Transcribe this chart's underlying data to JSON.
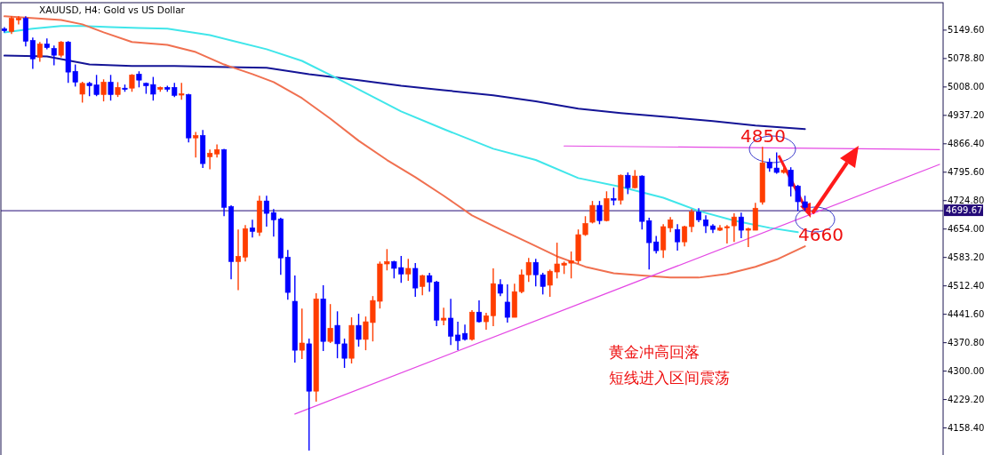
{
  "chart_data": {
    "type": "candlestick",
    "title": "XAUUSD, H4:  Gold vs US Dollar",
    "categories": [
      null,
      null,
      null,
      null,
      null,
      null,
      null,
      null,
      null,
      null,
      null,
      null,
      null,
      null,
      null,
      null,
      null,
      null,
      null,
      null,
      null,
      null,
      null,
      null,
      null,
      null,
      null,
      null,
      null,
      null,
      null,
      null,
      null,
      null,
      null,
      null,
      null,
      null,
      null,
      null,
      null,
      null,
      null,
      null,
      null,
      null,
      null,
      null,
      null,
      null,
      null,
      null,
      null,
      null,
      null,
      null,
      null,
      null,
      null,
      null,
      null,
      null,
      null,
      null,
      null,
      null,
      null,
      null,
      null,
      null,
      null,
      null,
      null,
      null,
      null,
      null,
      null,
      null,
      null,
      null,
      null,
      null,
      null,
      null,
      null,
      null,
      null,
      null,
      null,
      null,
      null,
      null,
      null,
      null,
      null,
      null,
      null,
      null,
      null,
      null,
      null,
      null,
      null,
      null,
      null,
      null,
      null,
      null,
      null,
      null,
      null,
      null,
      null,
      null,
      null,
      null,
      null,
      null,
      null,
      null,
      null,
      null,
      null,
      null,
      null,
      null,
      null,
      null,
      null,
      null,
      null,
      null,
      null
    ],
    "ohlc": [
      [
        5153,
        5157,
        5144,
        5148
      ],
      [
        5146,
        5184,
        5140,
        5179
      ],
      [
        5175,
        5184,
        5164,
        5179
      ],
      [
        5179,
        5184,
        5109,
        5122
      ],
      [
        5124,
        5131,
        5053,
        5078
      ],
      [
        5082,
        5120,
        5071,
        5115
      ],
      [
        5115,
        5129,
        5102,
        5106
      ],
      [
        5104,
        5111,
        5062,
        5087
      ],
      [
        5087,
        5122,
        5082,
        5120
      ],
      [
        5120,
        5122,
        5018,
        5045
      ],
      [
        5047,
        5064,
        5009,
        5020
      ],
      [
        4990,
        5021,
        4969,
        5017
      ],
      [
        5017,
        5021,
        4985,
        5011
      ],
      [
        5013,
        5038,
        4985,
        4989
      ],
      [
        4989,
        5027,
        4972,
        5020
      ],
      [
        5020,
        5038,
        4974,
        4989
      ],
      [
        4989,
        5020,
        4983,
        5007
      ],
      [
        5005,
        5014,
        4996,
        5003
      ],
      [
        5005,
        5040,
        4996,
        5038
      ],
      [
        5040,
        5047,
        5007,
        5025
      ],
      [
        5017,
        5019,
        4991,
        5011
      ],
      [
        5014,
        5033,
        4974,
        4990
      ],
      [
        5002,
        5009,
        4996,
        5007
      ],
      [
        5007,
        5011,
        4996,
        5002
      ],
      [
        5007,
        5018,
        4983,
        4987
      ],
      [
        4989,
        5018,
        4976,
        4991
      ],
      [
        4989,
        4991,
        4870,
        4881
      ],
      [
        4881,
        4896,
        4832,
        4887
      ],
      [
        4887,
        4901,
        4806,
        4817
      ],
      [
        4834,
        4852,
        4803,
        4843
      ],
      [
        4841,
        4865,
        4832,
        4852
      ],
      [
        4852,
        4854,
        4686,
        4708
      ],
      [
        4710,
        4713,
        4529,
        4573
      ],
      [
        4573,
        4653,
        4502,
        4586
      ],
      [
        4584,
        4664,
        4573,
        4655
      ],
      [
        4657,
        4677,
        4633,
        4648
      ],
      [
        4646,
        4737,
        4637,
        4724
      ],
      [
        4724,
        4737,
        4660,
        4693
      ],
      [
        4695,
        4704,
        4635,
        4677
      ],
      [
        4679,
        4682,
        4540,
        4582
      ],
      [
        4584,
        4602,
        4478,
        4496
      ],
      [
        4474,
        4538,
        4321,
        4352
      ],
      [
        4352,
        4456,
        4330,
        4370
      ],
      [
        4368,
        4381,
        4102,
        4250
      ],
      [
        4250,
        4494,
        4224,
        4480
      ],
      [
        4480,
        4514,
        4350,
        4374
      ],
      [
        4374,
        4467,
        4370,
        4407
      ],
      [
        4414,
        4449,
        4332,
        4368
      ],
      [
        4368,
        4381,
        4308,
        4332
      ],
      [
        4332,
        4434,
        4319,
        4414
      ],
      [
        4414,
        4443,
        4361,
        4379
      ],
      [
        4379,
        4436,
        4352,
        4423
      ],
      [
        4421,
        4487,
        4374,
        4476
      ],
      [
        4474,
        4573,
        4456,
        4567
      ],
      [
        4567,
        4604,
        4551,
        4573
      ],
      [
        4573,
        4575,
        4531,
        4556
      ],
      [
        4558,
        4587,
        4520,
        4542
      ],
      [
        4542,
        4580,
        4525,
        4556
      ],
      [
        4556,
        4569,
        4485,
        4507
      ],
      [
        4511,
        4540,
        4489,
        4538
      ],
      [
        4538,
        4545,
        4498,
        4522
      ],
      [
        4522,
        4525,
        4412,
        4427
      ],
      [
        4427,
        4458,
        4414,
        4432
      ],
      [
        4432,
        4480,
        4365,
        4387
      ],
      [
        4390,
        4423,
        4352,
        4376
      ],
      [
        4394,
        4416,
        4376,
        4379
      ],
      [
        4379,
        4452,
        4376,
        4447
      ],
      [
        4447,
        4476,
        4421,
        4423
      ],
      [
        4423,
        4445,
        4403,
        4438
      ],
      [
        4438,
        4556,
        4412,
        4518
      ],
      [
        4516,
        4529,
        4487,
        4494
      ],
      [
        4472,
        4516,
        4421,
        4434
      ],
      [
        4434,
        4518,
        4434,
        4498
      ],
      [
        4498,
        4553,
        4494,
        4540
      ],
      [
        4540,
        4582,
        4522,
        4571
      ],
      [
        4571,
        4580,
        4511,
        4540
      ],
      [
        4540,
        4545,
        4491,
        4511
      ],
      [
        4514,
        4553,
        4485,
        4549
      ],
      [
        4547,
        4620,
        4531,
        4567
      ],
      [
        4564,
        4573,
        4542,
        4569
      ],
      [
        4569,
        4598,
        4531,
        4575
      ],
      [
        4575,
        4653,
        4567,
        4640
      ],
      [
        4640,
        4686,
        4637,
        4668
      ],
      [
        4671,
        4724,
        4668,
        4713
      ],
      [
        4713,
        4724,
        4666,
        4675
      ],
      [
        4675,
        4748,
        4673,
        4730
      ],
      [
        4730,
        4757,
        4713,
        4726
      ],
      [
        4726,
        4790,
        4715,
        4788
      ],
      [
        4788,
        4795,
        4741,
        4757
      ],
      [
        4757,
        4801,
        4755,
        4786
      ],
      [
        4786,
        4788,
        4653,
        4673
      ],
      [
        4675,
        4682,
        4553,
        4620
      ],
      [
        4622,
        4637,
        4593,
        4600
      ],
      [
        4602,
        4666,
        4582,
        4660
      ],
      [
        4657,
        4684,
        4646,
        4677
      ],
      [
        4653,
        4666,
        4600,
        4622
      ],
      [
        4622,
        4662,
        4611,
        4660
      ],
      [
        4660,
        4704,
        4646,
        4697
      ],
      [
        4697,
        4706,
        4671,
        4677
      ],
      [
        4677,
        4688,
        4644,
        4662
      ],
      [
        4662,
        4666,
        4644,
        4653
      ],
      [
        4651,
        4664,
        4649,
        4657
      ],
      [
        4657,
        4664,
        4618,
        4660
      ],
      [
        4662,
        4693,
        4622,
        4684
      ],
      [
        4684,
        4695,
        4631,
        4651
      ],
      [
        4651,
        4657,
        4609,
        4655
      ],
      [
        4651,
        4719,
        4651,
        4706
      ],
      [
        4721,
        4859,
        4715,
        4819
      ],
      [
        4821,
        4830,
        4797,
        4806
      ],
      [
        4806,
        4845,
        4792,
        4795
      ],
      [
        4795,
        4808,
        4792,
        4801
      ],
      [
        4801,
        4808,
        4735,
        4761
      ],
      [
        4761,
        4764,
        4699,
        4722
      ],
      [
        4722,
        4737,
        4699,
        4708
      ],
      null,
      null,
      null,
      null,
      null,
      null,
      null,
      null,
      null,
      null,
      null,
      null,
      null,
      null,
      null,
      null,
      null,
      null,
      null
    ],
    "colors": [
      "#0000ff",
      "#ff3d00",
      "#ff3d00",
      "#0000ff",
      "#0000ff",
      "#ff3d00",
      "#0000ff",
      "#0000ff",
      "#ff3d00",
      "#0000ff",
      "#0000ff",
      "#ff3d00",
      "#0000ff",
      "#0000ff",
      "#ff3d00",
      "#0000ff",
      "#ff3d00",
      "#0000ff",
      "#ff3d00",
      "#0000ff",
      "#0000ff",
      "#0000ff",
      "#ff3d00",
      "#0000ff",
      "#0000ff",
      "#ff3d00",
      "#0000ff",
      "#ff3d00",
      "#0000ff",
      "#ff3d00",
      "#ff3d00",
      "#0000ff",
      "#0000ff",
      "#ff3d00",
      "#ff3d00",
      "#0000ff",
      "#ff3d00",
      "#0000ff",
      "#0000ff",
      "#0000ff",
      "#0000ff",
      "#0000ff",
      "#ff3d00",
      "#0000ff",
      "#ff3d00",
      "#0000ff",
      "#ff3d00",
      "#0000ff",
      "#0000ff",
      "#ff3d00",
      "#0000ff",
      "#ff3d00",
      "#ff3d00",
      "#ff3d00",
      "#ff3d00",
      "#0000ff",
      "#0000ff",
      "#ff3d00",
      "#0000ff",
      "#ff3d00",
      "#0000ff",
      "#0000ff",
      "#ff3d00",
      "#0000ff",
      "#0000ff",
      "#0000ff",
      "#ff3d00",
      "#0000ff",
      "#ff3d00",
      "#ff3d00",
      "#0000ff",
      "#0000ff",
      "#ff3d00",
      "#ff3d00",
      "#ff3d00",
      "#0000ff",
      "#0000ff",
      "#ff3d00",
      "#ff3d00",
      "#ff3d00",
      "#ff3d00",
      "#ff3d00",
      "#ff3d00",
      "#ff3d00",
      "#0000ff",
      "#ff3d00",
      "#0000ff",
      "#ff3d00",
      "#0000ff",
      "#ff3d00",
      "#0000ff",
      "#0000ff",
      "#0000ff",
      "#ff3d00",
      "#ff3d00",
      "#0000ff",
      "#ff3d00",
      "#ff3d00",
      "#0000ff",
      "#0000ff",
      "#0000ff",
      "#ff3d00",
      "#ff3d00",
      "#ff3d00",
      "#0000ff",
      "#ff3d00",
      "#ff3d00",
      "#ff3d00",
      "#0000ff",
      "#0000ff",
      "#ff3d00",
      "#0000ff",
      "#0000ff",
      "#0000ff",
      null,
      null,
      null,
      null,
      null,
      null,
      null,
      null,
      null,
      null,
      null,
      null,
      null,
      null,
      null,
      null,
      null,
      null,
      null
    ],
    "series": [
      {
        "type": "line",
        "color": "#141496",
        "values": [
          5086,
          null,
          null,
          null,
          null,
          null,
          5084,
          null,
          null,
          null,
          null,
          null,
          5064,
          null,
          null,
          null,
          null,
          null,
          5060,
          null,
          null,
          null,
          null,
          null,
          5060,
          null,
          null,
          null,
          null,
          null,
          5058,
          null,
          null,
          null,
          null,
          null,
          null,
          5056,
          null,
          null,
          null,
          null,
          null,
          5040,
          null,
          null,
          null,
          null,
          null,
          null,
          5025,
          null,
          null,
          null,
          null,
          null,
          5011,
          null,
          null,
          null,
          null,
          null,
          5000,
          null,
          null,
          null,
          null,
          null,
          null,
          4987,
          null,
          null,
          null,
          null,
          null,
          4972,
          null,
          null,
          null,
          null,
          null,
          4954,
          null,
          null,
          null,
          null,
          null,
          4943,
          null,
          null,
          null,
          null,
          null,
          4934,
          null,
          null,
          null,
          null,
          null,
          null,
          4923,
          null,
          null,
          null,
          null,
          null,
          4912,
          null,
          null,
          null,
          null,
          null,
          null,
          4903,
          null,
          null,
          null,
          null,
          null,
          null,
          null,
          null,
          null,
          null,
          null,
          null,
          null,
          null,
          null,
          null,
          null,
          null,
          null
        ]
      },
      {
        "type": "line",
        "color": "#40e6ea",
        "values": [
          5144,
          null,
          null,
          null,
          5153,
          null,
          null,
          null,
          5160,
          null,
          null,
          5160,
          null,
          null,
          null,
          5157,
          null,
          null,
          null,
          5155,
          null,
          null,
          null,
          5153,
          null,
          null,
          null,
          null,
          null,
          5137,
          null,
          null,
          5124,
          null,
          null,
          null,
          null,
          5102,
          null,
          null,
          null,
          null,
          5073,
          null,
          null,
          null,
          null,
          5029,
          null,
          null,
          5002,
          null,
          null,
          null,
          null,
          null,
          4947,
          null,
          null,
          null,
          null,
          null,
          4903,
          null,
          null,
          null,
          null,
          null,
          null,
          4854,
          null,
          null,
          null,
          null,
          null,
          4826,
          null,
          null,
          null,
          null,
          null,
          4781,
          null,
          null,
          null,
          null,
          null,
          4759,
          null,
          null,
          null,
          null,
          null,
          4732,
          null,
          null,
          null,
          null,
          4699,
          null,
          null,
          null,
          null,
          4675,
          null,
          null,
          null,
          null,
          4657,
          null,
          null,
          null,
          4646,
          null,
          null,
          null,
          null,
          null,
          null,
          null,
          null,
          null,
          null,
          null,
          null,
          null,
          null,
          null,
          null,
          null,
          null,
          null,
          null
        ]
      },
      {
        "type": "line",
        "color": "#f07050",
        "values": [
          5184,
          null,
          null,
          null,
          null,
          null,
          null,
          null,
          5175,
          null,
          null,
          5164,
          null,
          null,
          5144,
          null,
          null,
          null,
          5120,
          null,
          null,
          null,
          null,
          5113,
          null,
          null,
          null,
          5095,
          null,
          null,
          null,
          5064,
          null,
          null,
          null,
          5040,
          null,
          null,
          5020,
          null,
          null,
          null,
          4980,
          null,
          null,
          null,
          4929,
          null,
          null,
          null,
          4874,
          null,
          null,
          null,
          4826,
          null,
          null,
          null,
          4783,
          null,
          null,
          null,
          4737,
          null,
          null,
          null,
          4688,
          null,
          null,
          null,
          4653,
          null,
          null,
          null,
          4620,
          null,
          null,
          null,
          4586,
          null,
          null,
          null,
          4560,
          null,
          null,
          null,
          4544,
          null,
          null,
          null,
          4538,
          null,
          null,
          null,
          4533,
          null,
          null,
          null,
          4533,
          null,
          null,
          null,
          4542,
          null,
          null,
          null,
          4560,
          null,
          null,
          4578,
          null,
          null,
          null,
          4611,
          null,
          null,
          null,
          null,
          null,
          null,
          null,
          null,
          null,
          null,
          null,
          null,
          null,
          null,
          null,
          null,
          null,
          null,
          null
        ]
      },
      {
        "type": "line",
        "color": "#e448e4",
        "values": [
          null,
          null,
          null,
          null,
          null,
          null,
          null,
          null,
          null,
          null,
          null,
          null,
          null,
          null,
          null,
          null,
          null,
          null,
          null,
          null,
          null,
          null,
          null,
          null,
          null,
          null,
          null,
          null,
          null,
          null,
          null,
          null,
          null,
          null,
          null,
          null,
          null,
          null,
          null,
          null,
          null,
          4193,
          null,
          null,
          null,
          null,
          null,
          null,
          null,
          null,
          null,
          null,
          null,
          null,
          null,
          null,
          null,
          null,
          null,
          null,
          null,
          null,
          null,
          null,
          null,
          null,
          null,
          null,
          null,
          null,
          null,
          null,
          null,
          null,
          null,
          null,
          null,
          null,
          null,
          null,
          null,
          null,
          null,
          null,
          null,
          null,
          null,
          null,
          null,
          null,
          null,
          null,
          null,
          null,
          null,
          null,
          null,
          null,
          null,
          null,
          null,
          null,
          null,
          null,
          null,
          null,
          null,
          null,
          null,
          null,
          null,
          null,
          null,
          null,
          null,
          null,
          null,
          null,
          null,
          null,
          null,
          null,
          null,
          null,
          null,
          null,
          null,
          null,
          null,
          null,
          null,
          null,
          4815
        ]
      },
      {
        "type": "line",
        "color": "#e448e4",
        "values": [
          null,
          null,
          null,
          null,
          null,
          null,
          null,
          null,
          null,
          null,
          null,
          null,
          null,
          null,
          null,
          null,
          null,
          null,
          null,
          null,
          null,
          null,
          null,
          null,
          null,
          null,
          null,
          null,
          null,
          null,
          null,
          null,
          null,
          null,
          null,
          null,
          null,
          null,
          null,
          null,
          null,
          null,
          null,
          null,
          null,
          null,
          null,
          null,
          null,
          null,
          null,
          null,
          null,
          null,
          null,
          null,
          null,
          null,
          null,
          null,
          null,
          null,
          null,
          null,
          null,
          null,
          null,
          null,
          null,
          null,
          null,
          null,
          null,
          null,
          null,
          null,
          null,
          null,
          null,
          4861,
          null,
          null,
          null,
          null,
          null,
          null,
          null,
          null,
          null,
          null,
          null,
          null,
          null,
          null,
          null,
          null,
          null,
          null,
          null,
          null,
          null,
          null,
          null,
          null,
          null,
          null,
          null,
          null,
          null,
          null,
          null,
          null,
          null,
          null,
          null,
          null,
          null,
          null,
          null,
          null,
          null,
          null,
          null,
          null,
          null,
          null,
          null,
          null,
          null,
          null,
          null,
          null,
          4852
        ]
      }
    ],
    "ylim": [
      4091,
      5218
    ],
    "yticks": [
      {
        "value": 5149.6,
        "label": "5149.60"
      },
      {
        "value": 5078.8,
        "label": "5078.80"
      },
      {
        "value": 5008,
        "label": "5008.00"
      },
      {
        "value": 4937.2,
        "label": "4937.20"
      },
      {
        "value": 4866.4,
        "label": "4866.40"
      },
      {
        "value": 4795.6,
        "label": "4795.60"
      },
      {
        "value": 4724.8,
        "label": "4724.80"
      },
      {
        "value": 4654,
        "label": "4654.00"
      },
      {
        "value": 4583.2,
        "label": "4583.20"
      },
      {
        "value": 4512.4,
        "label": "4512.40"
      },
      {
        "value": 4441.6,
        "label": "4441.60"
      },
      {
        "value": 4370.8,
        "label": "4370.80"
      },
      {
        "value": 4300,
        "label": "4300.00"
      },
      {
        "value": 4229.2,
        "label": "4229.20"
      },
      {
        "value": 4158.4,
        "label": "4158.40"
      }
    ],
    "tick_labels": "y",
    "ref_lines": [
      {
        "axis": "y",
        "value": 4699.67,
        "label": "4699.67",
        "color": "#240a78"
      }
    ],
    "annotations": [
      "4850",
      "4660",
      "黄金冲高回落",
      "短线进入区间震荡"
    ]
  }
}
